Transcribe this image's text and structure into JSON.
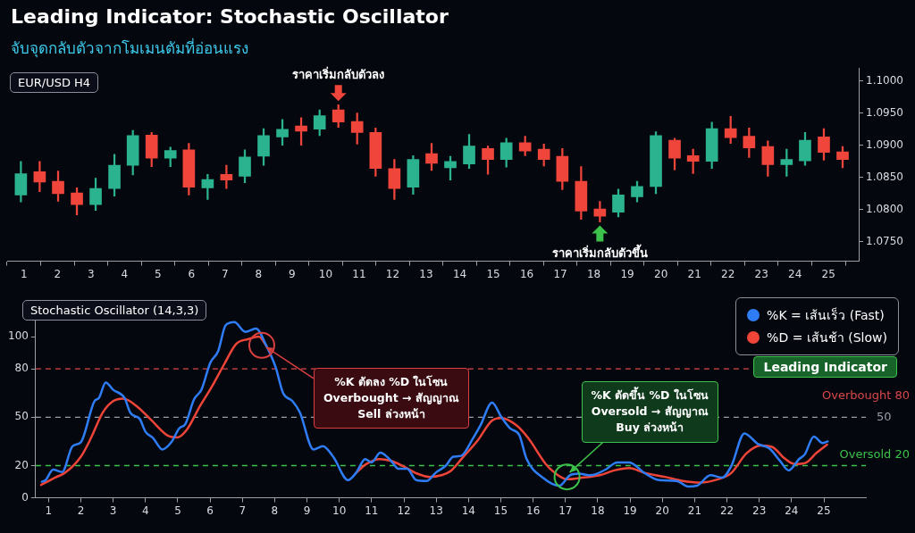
{
  "chart_data": [
    {
      "type": "candlestick",
      "title": "Leading Indicator: Stochastic Oscillator",
      "subtitle": "จับจุดกลับตัวจากโมเมนตัมที่อ่อนแรง",
      "annotations": [
        "EUR/USD H4",
        {
          "text": "ราคาเริ่มกลับตัวลง",
          "x": 10.38,
          "y": 1.0963
        },
        {
          "text": "ราคาเริ่มกลับตัวขึ้น",
          "x": 18.18,
          "y": 1.0781
        }
      ],
      "x": [
        0.91,
        1.47,
        2.02,
        2.58,
        3.14,
        3.7,
        4.25,
        4.81,
        5.37,
        5.92,
        6.48,
        7.04,
        7.59,
        8.15,
        8.71,
        9.27,
        9.82,
        10.38,
        10.94,
        11.49,
        12.05,
        12.61,
        13.16,
        13.72,
        14.28,
        14.84,
        15.39,
        15.95,
        16.51,
        17.06,
        17.62,
        18.18,
        18.73,
        19.29,
        19.85,
        20.41,
        20.96,
        21.52,
        22.08,
        22.63,
        23.19,
        23.75,
        24.3,
        24.86,
        25.42
      ],
      "ohlc": [
        [
          1.0823,
          1.0875,
          1.0812,
          1.0856
        ],
        [
          1.0859,
          1.0875,
          1.0828,
          1.0843
        ],
        [
          1.0844,
          1.086,
          1.0813,
          1.0825
        ],
        [
          1.0826,
          1.0834,
          1.0792,
          1.0808
        ],
        [
          1.0808,
          1.0849,
          1.0799,
          1.0833
        ],
        [
          1.0833,
          1.0886,
          1.0821,
          1.0869
        ],
        [
          1.0869,
          1.0923,
          1.0854,
          1.0915
        ],
        [
          1.0916,
          1.092,
          1.0867,
          1.088
        ],
        [
          1.088,
          1.0897,
          1.0867,
          1.0892
        ],
        [
          1.0893,
          1.0903,
          1.0823,
          1.0835
        ],
        [
          1.0834,
          1.0855,
          1.0816,
          1.0847
        ],
        [
          1.0855,
          1.0869,
          1.0833,
          1.0846
        ],
        [
          1.0852,
          1.0893,
          1.0842,
          1.0882
        ],
        [
          1.0883,
          1.0926,
          1.0869,
          1.0915
        ],
        [
          1.0913,
          1.094,
          1.09,
          1.0925
        ],
        [
          1.093,
          1.0943,
          1.09,
          1.0922
        ],
        [
          1.0925,
          1.0955,
          1.0915,
          1.0946
        ],
        [
          1.0955,
          1.0963,
          1.0928,
          1.0936
        ],
        [
          1.0937,
          1.095,
          1.0902,
          1.092
        ],
        [
          1.092,
          1.0927,
          1.0852,
          1.0864
        ],
        [
          1.0864,
          1.0878,
          1.0816,
          1.0833
        ],
        [
          1.0835,
          1.0884,
          1.0824,
          1.0878
        ],
        [
          1.0887,
          1.0903,
          1.0861,
          1.0872
        ],
        [
          1.0865,
          1.0883,
          1.0846,
          1.0875
        ],
        [
          1.0871,
          1.0917,
          1.0864,
          1.0899
        ],
        [
          1.0895,
          1.0899,
          1.0855,
          1.0878
        ],
        [
          1.0878,
          1.0911,
          1.0866,
          1.0904
        ],
        [
          1.0904,
          1.0914,
          1.0884,
          1.0891
        ],
        [
          1.0894,
          1.0902,
          1.0868,
          1.0878
        ],
        [
          1.0883,
          1.0895,
          1.0831,
          1.0844
        ],
        [
          1.0844,
          1.0867,
          1.0785,
          1.0798
        ],
        [
          1.0801,
          1.0813,
          1.0781,
          1.079
        ],
        [
          1.0796,
          1.0832,
          1.0789,
          1.0823
        ],
        [
          1.082,
          1.0844,
          1.0812,
          1.0836
        ],
        [
          1.0836,
          1.0921,
          1.0825,
          1.0915
        ],
        [
          1.0908,
          1.0911,
          1.0862,
          1.088
        ],
        [
          1.0884,
          1.0894,
          1.0856,
          1.0875
        ],
        [
          1.0875,
          1.0936,
          1.0864,
          1.0926
        ],
        [
          1.0926,
          1.0945,
          1.0903,
          1.0912
        ],
        [
          1.0914,
          1.0927,
          1.0881,
          1.0896
        ],
        [
          1.0898,
          1.0907,
          1.0852,
          1.087
        ],
        [
          1.087,
          1.0894,
          1.0852,
          1.0878
        ],
        [
          1.0876,
          1.092,
          1.0869,
          1.0908
        ],
        [
          1.0913,
          1.0926,
          1.0877,
          1.0889
        ],
        [
          1.089,
          1.0898,
          1.0865,
          1.0878
        ]
      ],
      "colors": [
        "#2bb38f",
        "#f0453a",
        "#f0453a",
        "#f0453a",
        "#2bb38f",
        "#2bb38f",
        "#2bb38f",
        "#f0453a",
        "#2bb38f",
        "#f0453a",
        "#2bb38f",
        "#f0453a",
        "#2bb38f",
        "#2bb38f",
        "#2bb38f",
        "#f0453a",
        "#2bb38f",
        "#f0453a",
        "#f0453a",
        "#f0453a",
        "#f0453a",
        "#2bb38f",
        "#f0453a",
        "#2bb38f",
        "#2bb38f",
        "#f0453a",
        "#2bb38f",
        "#f0453a",
        "#f0453a",
        "#f0453a",
        "#f0453a",
        "#f0453a",
        "#2bb38f",
        "#2bb38f",
        "#2bb38f",
        "#f0453a",
        "#f0453a",
        "#2bb38f",
        "#f0453a",
        "#f0453a",
        "#f0453a",
        "#2bb38f",
        "#2bb38f",
        "#f0453a",
        "#f0453a"
      ],
      "xlim": [
        0.5,
        25.9
      ],
      "xticks": [
        1,
        2,
        3,
        4,
        5,
        6,
        7,
        8,
        9,
        10,
        11,
        12,
        13,
        14,
        15,
        16,
        17,
        18,
        19,
        20,
        21,
        22,
        23,
        24,
        25
      ],
      "ylim": [
        1.072,
        1.102
      ],
      "yticks": [
        {
          "value": 1.075,
          "label": "1.0750"
        },
        {
          "value": 1.08,
          "label": "1.0800"
        },
        {
          "value": 1.085,
          "label": "1.0850"
        },
        {
          "value": 1.09,
          "label": "1.0900"
        },
        {
          "value": 1.095,
          "label": "1.0950"
        },
        {
          "value": 1.1,
          "label": "1.1000"
        }
      ]
    },
    {
      "type": "line",
      "title": "Stochastic Oscillator (14,3,3)",
      "legend": "top right",
      "marker": "none",
      "series": [
        {
          "name": "%K = เส้นเร็ว (Fast)",
          "color": "#2f7df6",
          "x": [
            0.79,
            0.91,
            1.14,
            1.42,
            1.74,
            2.0,
            2.42,
            2.56,
            2.77,
            3.0,
            3.35,
            3.54,
            3.82,
            4.0,
            4.24,
            4.52,
            4.8,
            5.04,
            5.24,
            5.5,
            5.73,
            6.01,
            6.25,
            6.48,
            6.75,
            7.09,
            7.42,
            7.75,
            8.03,
            8.26,
            8.55,
            8.78,
            9.2,
            9.49,
            9.81,
            10.27,
            10.52,
            10.8,
            11.0,
            11.27,
            11.6,
            11.83,
            12.1,
            12.38,
            12.71,
            12.98,
            13.3,
            13.53,
            13.77,
            14.14,
            14.37,
            14.73,
            15.02,
            15.29,
            15.57,
            15.8,
            16.3,
            16.81,
            17.14,
            17.41,
            17.78,
            18.24,
            18.6,
            18.98,
            19.44,
            19.9,
            20.44,
            20.8,
            21.07,
            21.49,
            21.85,
            22.14,
            22.54,
            22.95,
            23.32,
            23.64,
            23.91,
            24.23,
            24.41,
            24.69,
            24.96,
            25.12
          ],
          "values": [
            10,
            11,
            17.5,
            16,
            32,
            34.5,
            60,
            62,
            71.5,
            67,
            62,
            52.5,
            49,
            41,
            37,
            30,
            34.5,
            43,
            46,
            61,
            67,
            84,
            91,
            107,
            109,
            103,
            105,
            94,
            81,
            65,
            60,
            53,
            30,
            32,
            25.5,
            11,
            15.5,
            24,
            22,
            28,
            23,
            18,
            18,
            11,
            10.5,
            15.5,
            20,
            25.5,
            26,
            37,
            45,
            59,
            50,
            43,
            39,
            24,
            12.5,
            7.5,
            14,
            15,
            14,
            17.5,
            22,
            22,
            15.5,
            11,
            10.5,
            7,
            7.5,
            14,
            12.5,
            20,
            40,
            33.5,
            30.5,
            23,
            17,
            24,
            27,
            38,
            34,
            35
          ]
        },
        {
          "name": "%D = เส้นช้า (Slow)",
          "color": "#ef4438",
          "x": [
            0.77,
            1.19,
            1.51,
            2.0,
            2.31,
            2.68,
            3.0,
            3.31,
            3.72,
            4.19,
            4.7,
            4.99,
            5.27,
            5.69,
            6.07,
            6.44,
            6.81,
            7.19,
            7.51,
            7.75,
            9.0,
            10.52,
            10.84,
            11.25,
            11.58,
            11.99,
            12.41,
            12.79,
            13.16,
            13.44,
            13.8,
            14.28,
            14.73,
            15.02,
            15.48,
            15.85,
            16.39,
            16.67,
            17.05,
            17.51,
            18.06,
            18.51,
            18.98,
            19.44,
            20.08,
            20.63,
            21.17,
            21.72,
            22.14,
            22.6,
            23.05,
            23.41,
            23.78,
            24.09,
            24.41,
            24.78,
            25.1
          ],
          "values": [
            8,
            12.5,
            15.5,
            25.5,
            37,
            53,
            60,
            61.5,
            57,
            48,
            38.5,
            37.5,
            42,
            57,
            69.5,
            83,
            95.5,
            98.5,
            100,
            94,
            null,
            15.5,
            21,
            24,
            23,
            19.5,
            15,
            13,
            14,
            16.5,
            24.5,
            35.5,
            48,
            49.5,
            45,
            37,
            21,
            15.5,
            11.5,
            12.5,
            14,
            17,
            18.5,
            15.5,
            13,
            10.5,
            9.5,
            11.5,
            15.5,
            27.5,
            32.5,
            31.5,
            24.5,
            21,
            21.5,
            28,
            33
          ]
        }
      ],
      "ref_lines": [
        {
          "axis": "y",
          "value": 80,
          "label": "Overbought 80",
          "color": "#d9484a",
          "line_style": "dashed"
        },
        {
          "axis": "y",
          "value": 50,
          "label": "50",
          "color": "#9a9ea8",
          "line_style": "dashed"
        },
        {
          "axis": "y",
          "value": 20,
          "label": "Oversold 20",
          "color": "#3cc24a",
          "line_style": "dashed"
        }
      ],
      "annotations": [
        {
          "text": "%K ตัดลง %D ในโซน\nOverbought → สัญญาณ\nSell ล่วงหน้า",
          "x": 7.6,
          "y": 94.6
        },
        {
          "text": "%K ตัดขึ้น %D ในโซน\nOversold → สัญญาณ\nBuy ล่วงหน้า",
          "x": 17.05,
          "y": 13
        },
        "Leading Indicator"
      ],
      "xlim": [
        0.6,
        26.3
      ],
      "xticks": [
        1,
        2,
        3,
        4,
        5,
        6,
        7,
        8,
        9,
        10,
        11,
        12,
        13,
        14,
        15,
        16,
        17,
        18,
        19,
        20,
        21,
        22,
        23,
        24,
        25
      ],
      "ylim": [
        0,
        110
      ],
      "yticks": [
        0,
        20,
        50,
        80,
        100
      ]
    }
  ]
}
